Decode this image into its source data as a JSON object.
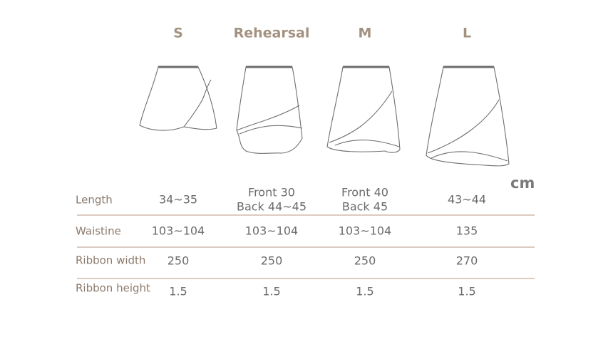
{
  "header": {
    "columns": [
      "S",
      "Rehearsal",
      "M",
      "L"
    ],
    "unit": "cm"
  },
  "table": {
    "rows": [
      {
        "label": "Length",
        "cells": [
          [
            "34~35"
          ],
          [
            "Front 30",
            "Back 44~45"
          ],
          [
            "Front 40",
            "Back 45"
          ],
          [
            "43~44"
          ]
        ]
      },
      {
        "label": "Waistine",
        "cells": [
          [
            "103~104"
          ],
          [
            "103~104"
          ],
          [
            "103~104"
          ],
          [
            "135"
          ]
        ]
      },
      {
        "label": "Ribbon width",
        "cells": [
          [
            "250"
          ],
          [
            "250"
          ],
          [
            "250"
          ],
          [
            "270"
          ]
        ]
      },
      {
        "label": "Ribbon height",
        "cells": [
          [
            "1.5"
          ],
          [
            "1.5"
          ],
          [
            "1.5"
          ],
          [
            "1.5"
          ]
        ]
      }
    ]
  }
}
